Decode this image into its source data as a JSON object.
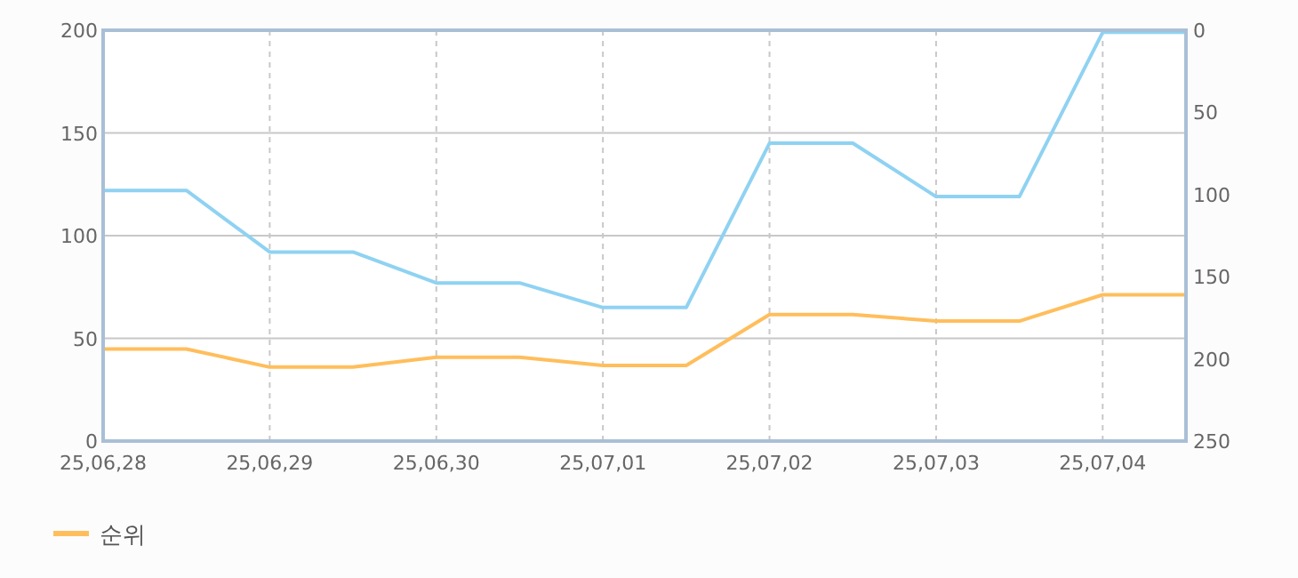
{
  "chart_data": {
    "type": "line",
    "x": [
      "--06-28T00:00",
      "--06-28T12:00",
      "--06-29T00:00",
      "--06-29T12:00",
      "--06-30T00:00",
      "--06-30T12:00",
      "--07-01T00:00",
      "--07-01T12:00",
      "--07-02T00:00",
      "--07-02T12:00",
      "--07-03T00:00",
      "--07-03T12:00",
      "--07-04T00:00",
      "--07-04T12:00"
    ],
    "series": [
      {
        "color": "#8fd2f2",
        "values": [
          122,
          122,
          92,
          92,
          77,
          77,
          65,
          65,
          145,
          145,
          119,
          119,
          199,
          199
        ]
      },
      {
        "name": "순위",
        "color": "#ffbe5c",
        "axis": "y2",
        "values": [
          194,
          194,
          205,
          205,
          199,
          199,
          204,
          204,
          173,
          173,
          177,
          177,
          161,
          161
        ]
      }
    ],
    "xlim": [
      "--06-28T00:00",
      "--07-04T12:00"
    ],
    "xticks": [
      {
        "value": "--06-28",
        "label": "25,06,28"
      },
      {
        "value": "--06-29",
        "label": "25,06,29"
      },
      {
        "value": "--06-30",
        "label": "25,06,30"
      },
      {
        "value": "--07-01",
        "label": "25,07,01"
      },
      {
        "value": "--07-02",
        "label": "25,07,02"
      },
      {
        "value": "--07-03",
        "label": "25,07,03"
      },
      {
        "value": "--07-04",
        "label": "25,07,04"
      }
    ],
    "ylim": [
      0,
      200
    ],
    "yticks": [
      0,
      50,
      100,
      150,
      200
    ],
    "y2lim": [
      250,
      0
    ],
    "y2ticks": [
      0,
      50,
      100,
      150,
      200,
      250
    ],
    "grid": true,
    "legend": "bottom left"
  }
}
